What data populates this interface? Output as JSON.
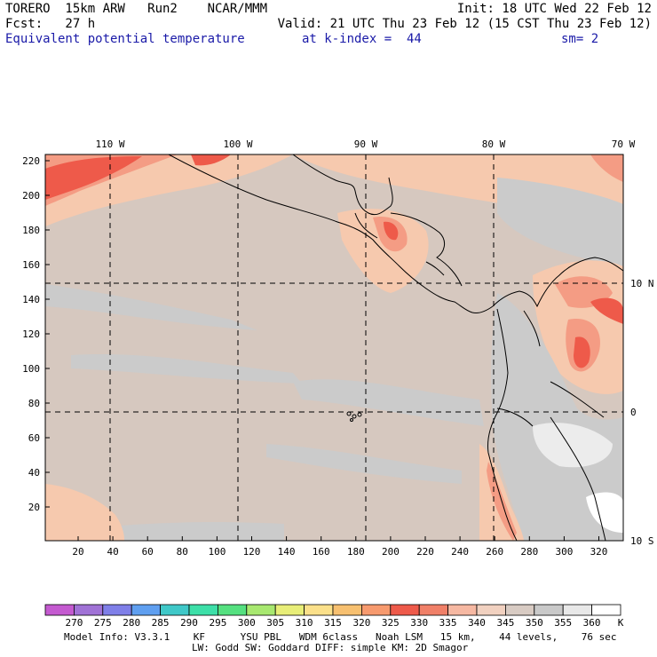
{
  "header": {
    "line1_left": "TORERO  15km ARW   Run2    NCAR/MMM",
    "line1_right": "Init: 18 UTC Wed 22 Feb 12",
    "line2_left": "Fcst:   27 h",
    "line2_right": "Valid: 21 UTC Thu 23 Feb 12 (15 CST Thu 23 Feb 12)",
    "line3_field": "Equivalent potential temperature",
    "line3_level": "at k-index =  44",
    "line3_smooth": "sm= 2"
  },
  "map": {
    "top_labels": [
      "110 W",
      "100 W",
      "90 W",
      "80 W",
      "70 W"
    ],
    "right_labels": [
      "10 N",
      "0",
      "10 S"
    ],
    "x_ticks": [
      "20",
      "40",
      "60",
      "80",
      "100",
      "120",
      "140",
      "160",
      "180",
      "200",
      "220",
      "240",
      "260",
      "280",
      "300",
      "320"
    ],
    "y_ticks": [
      "220",
      "200",
      "180",
      "160",
      "140",
      "120",
      "100",
      "80",
      "60",
      "40",
      "20"
    ],
    "colors": {
      "base": "#d6c8bf",
      "land_gray": "#c9c9c9",
      "light": "#ececec",
      "peach": "#f6c9ae",
      "salmon": "#f49c84",
      "red": "#ee5a4a"
    }
  },
  "colorbar": {
    "unit": "K",
    "labels": [
      "270",
      "275",
      "280",
      "285",
      "290",
      "295",
      "300",
      "305",
      "310",
      "315",
      "320",
      "325",
      "330",
      "335",
      "340",
      "345",
      "350",
      "355",
      "360"
    ],
    "colors": [
      "#c45ad0",
      "#a072d6",
      "#7f7fe8",
      "#5f9ff0",
      "#3fc8c8",
      "#3ddfa8",
      "#55e080",
      "#a8e870",
      "#e8ee78",
      "#fbe08a",
      "#f7c070",
      "#f79a6e",
      "#ee5a4a",
      "#f08068",
      "#f6b8a2",
      "#f1d1c0",
      "#d8cbc3",
      "#c9c9c9",
      "#e8e8e8",
      "#ffffff"
    ]
  },
  "footer": {
    "line1": "Model Info: V3.3.1    KF      YSU PBL   WDM 6class   Noah LSM   15 km,    44 levels,    76 sec",
    "line2": "LW: Godd SW: Goddard DIFF: simple KM: 2D Smagor"
  }
}
